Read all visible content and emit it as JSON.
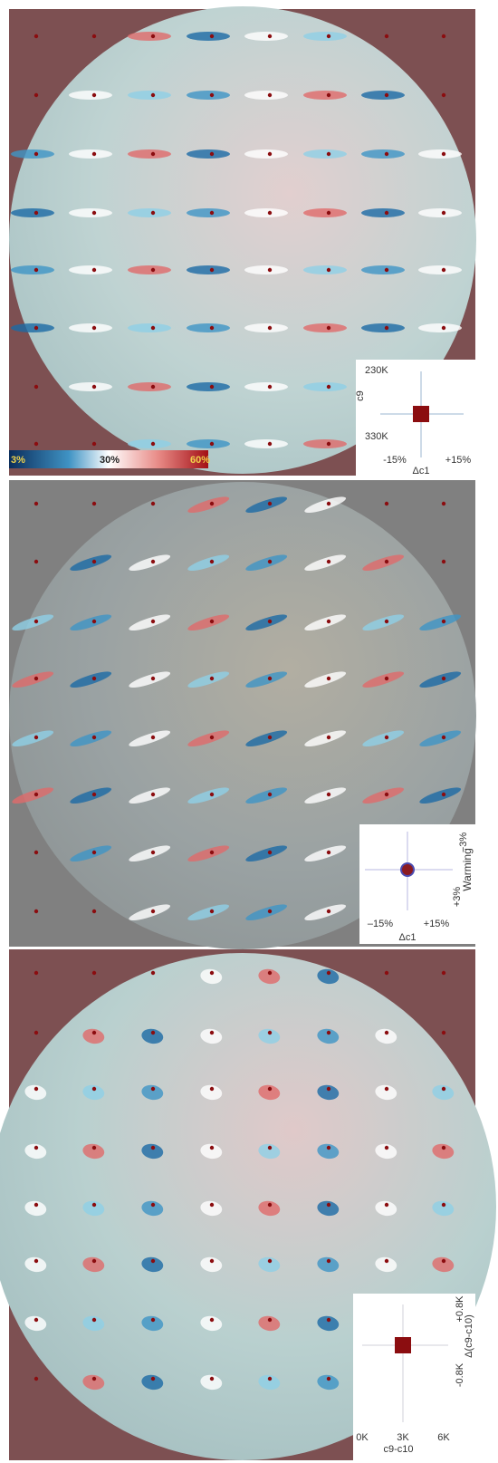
{
  "panels": [
    {
      "colorbar": {
        "min": "3%",
        "mid": "30%",
        "max": "60%"
      },
      "legend": {
        "y_top": "230K",
        "y_label": "c9",
        "y_bottom": "330K",
        "x_left": "-15%",
        "x_right": "+15%",
        "x_label": "Δc1"
      }
    },
    {
      "legend": {
        "y_top": "−3%",
        "y_label": "Warming",
        "y_bottom": "+3%",
        "x_left": "–15%",
        "x_right": "+15%",
        "x_label": "Δc1"
      }
    },
    {
      "legend": {
        "y_top": "+0.8K",
        "y_label": "Δ(c9-c10)",
        "y_bottom": "-0.8K",
        "x_left": "0K",
        "x_mid": "3K",
        "x_right": "6K",
        "x_label": "c9-c10"
      }
    }
  ]
}
